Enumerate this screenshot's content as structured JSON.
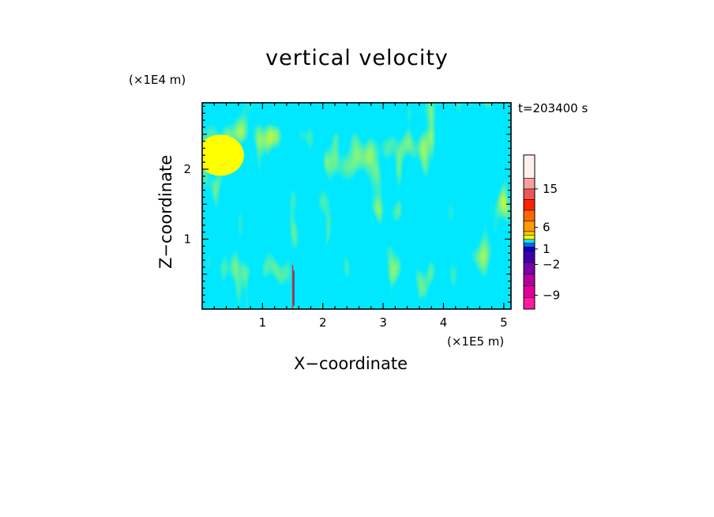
{
  "chart_data": {
    "type": "heatmap",
    "title": "vertical velocity",
    "xlabel": "X−coordinate",
    "ylabel": "Z−coordinate",
    "x_unit": "(×1E5 m)",
    "y_unit": "(×1E4 m)",
    "time_label": "t=203400 s",
    "xlim": [
      0,
      5.12
    ],
    "ylim": [
      0,
      2.95
    ],
    "x_ticks": [
      {
        "value": 1,
        "label": "1"
      },
      {
        "value": 2,
        "label": "2"
      },
      {
        "value": 3,
        "label": "3"
      },
      {
        "value": 4,
        "label": "4"
      },
      {
        "value": 5,
        "label": "5"
      }
    ],
    "y_ticks": [
      {
        "value": 1,
        "label": "1"
      },
      {
        "value": 2,
        "label": "2"
      }
    ],
    "colorbar": {
      "levels": [
        {
          "color": "#ff1aa0"
        },
        {
          "color": "#e0009a"
        },
        {
          "color": "#b2009f"
        },
        {
          "color": "#7a00a8"
        },
        {
          "color": "#3a00a6"
        },
        {
          "color": "#0000cc"
        },
        {
          "color": "#1060ff"
        },
        {
          "color": "#00e8ff"
        },
        {
          "color": "#ffff00"
        },
        {
          "color": "#ffcc00"
        },
        {
          "color": "#ff9900"
        },
        {
          "color": "#ff6600"
        },
        {
          "color": "#ff2200"
        },
        {
          "color": "#ee5555"
        },
        {
          "color": "#f5a0a0"
        },
        {
          "color": "#fff0ec"
        }
      ],
      "labels": [
        {
          "label": "−9",
          "position": 0.09
        },
        {
          "label": "−2",
          "position": 0.29
        },
        {
          "label": "1",
          "position": 0.39
        },
        {
          "label": "6",
          "position": 0.53
        },
        {
          "label": "15",
          "position": 0.78
        }
      ]
    },
    "field_colors": {
      "positive": "#ffff00",
      "negative": "#00e8ff",
      "strong_positive": "#ff2200",
      "strong_negative": "#3a00a6"
    }
  }
}
